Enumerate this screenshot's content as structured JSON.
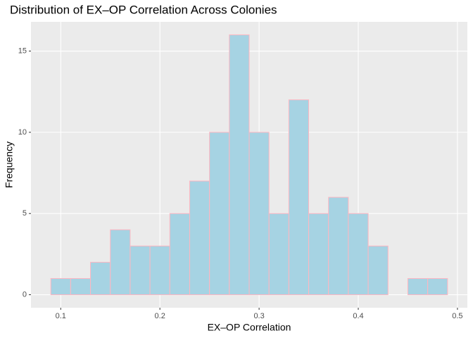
{
  "chart_data": {
    "type": "histogram",
    "title": "Distribution of EX–OP Correlation Across Colonies",
    "x_label": "EX–OP Correlation",
    "y_label": "Frequency",
    "bins": [
      0.09,
      0.11,
      0.13,
      0.15,
      0.17,
      0.19,
      0.21,
      0.23,
      0.25,
      0.27,
      0.29,
      0.31,
      0.33,
      0.35,
      0.37,
      0.39,
      0.41,
      0.43,
      0.45,
      0.47,
      0.49
    ],
    "values": [
      1,
      1,
      2,
      4,
      3,
      3,
      5,
      7,
      10,
      16,
      10,
      5,
      12,
      5,
      6,
      5,
      3,
      0,
      1,
      1
    ],
    "color": "#a6d3e3",
    "edge_color": "#ffb6c1",
    "xlim": [
      0.07,
      0.51
    ],
    "xticks": [
      0.1,
      0.2,
      0.3,
      0.4,
      0.5
    ],
    "ylim": [
      -0.8,
      16.8
    ],
    "yticks": [
      0,
      5,
      10,
      15
    ],
    "grid": true
  }
}
